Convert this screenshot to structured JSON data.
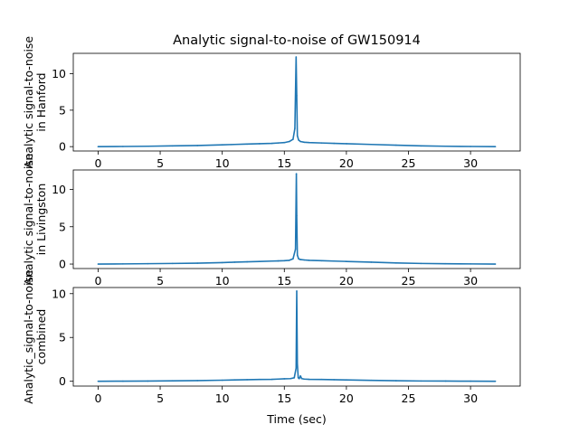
{
  "figure": {
    "title": "Analytic signal-to-noise of GW150914",
    "xlabel": "Time (sec)"
  },
  "chart_data": [
    {
      "type": "line",
      "ylabel_lines": [
        "Analytic signal-to-noise",
        "in Hanford"
      ],
      "xlim": [
        -2,
        34
      ],
      "ylim": [
        -0.6,
        12.8
      ],
      "xticks": [
        0,
        5,
        10,
        15,
        20,
        25,
        30
      ],
      "yticks": [
        0,
        5,
        10
      ],
      "grid": false,
      "color": "#1f77b4",
      "series": [
        {
          "x": [
            0,
            2,
            4,
            6,
            8,
            10,
            11,
            12,
            13,
            14,
            14.5,
            15,
            15.4,
            15.7,
            15.85,
            15.95,
            16.0,
            16.05,
            16.15,
            16.3,
            16.6,
            17,
            18,
            19,
            20,
            22,
            24,
            26,
            28,
            30,
            32
          ],
          "y": [
            0.0,
            0.02,
            0.05,
            0.1,
            0.15,
            0.25,
            0.3,
            0.35,
            0.4,
            0.45,
            0.5,
            0.55,
            0.7,
            1.0,
            2.5,
            12.3,
            7.0,
            1.5,
            0.9,
            0.7,
            0.6,
            0.55,
            0.5,
            0.45,
            0.4,
            0.3,
            0.2,
            0.1,
            0.05,
            0.02,
            0.0
          ]
        }
      ]
    },
    {
      "type": "line",
      "ylabel_lines": [
        "Analytic signal-to-noise",
        "in Livingston"
      ],
      "xlim": [
        -2,
        34
      ],
      "ylim": [
        -0.6,
        12.6
      ],
      "xticks": [
        0,
        5,
        10,
        15,
        20,
        25,
        30
      ],
      "yticks": [
        0,
        5,
        10
      ],
      "grid": false,
      "color": "#1f77b4",
      "series": [
        {
          "x": [
            0,
            2,
            4,
            6,
            8,
            10,
            11,
            12,
            13,
            14,
            14.5,
            15,
            15.4,
            15.7,
            15.9,
            15.97,
            16.0,
            16.05,
            16.15,
            16.3,
            16.6,
            17,
            18,
            19,
            20,
            22,
            24,
            26,
            28,
            30,
            32
          ],
          "y": [
            0.0,
            0.02,
            0.05,
            0.08,
            0.12,
            0.2,
            0.25,
            0.3,
            0.35,
            0.4,
            0.42,
            0.45,
            0.5,
            0.7,
            2.0,
            12.1,
            6.5,
            1.2,
            0.7,
            0.6,
            0.55,
            0.5,
            0.45,
            0.4,
            0.35,
            0.25,
            0.15,
            0.08,
            0.04,
            0.02,
            0.0
          ]
        }
      ]
    },
    {
      "type": "line",
      "ylabel_lines": [
        "Analytic_signal-to-noise",
        "combined"
      ],
      "xlim": [
        -2,
        34
      ],
      "ylim": [
        -0.55,
        10.7
      ],
      "xticks": [
        0,
        5,
        10,
        15,
        20,
        25,
        30
      ],
      "yticks": [
        0,
        5,
        10
      ],
      "grid": false,
      "color": "#1f77b4",
      "series": [
        {
          "x": [
            0,
            2,
            4,
            6,
            8,
            10,
            11,
            12,
            13,
            14,
            14.5,
            15,
            15.5,
            15.8,
            15.95,
            16.0,
            16.05,
            16.12,
            16.2,
            16.3,
            16.4,
            16.6,
            17,
            18,
            19,
            20,
            22,
            24,
            26,
            28,
            30,
            32
          ],
          "y": [
            0.0,
            0.01,
            0.02,
            0.05,
            0.08,
            0.12,
            0.15,
            0.18,
            0.2,
            0.22,
            0.25,
            0.28,
            0.3,
            0.4,
            1.5,
            10.3,
            2.0,
            0.4,
            0.3,
            0.6,
            0.3,
            0.25,
            0.22,
            0.2,
            0.18,
            0.15,
            0.1,
            0.06,
            0.03,
            0.02,
            0.01,
            0.0
          ]
        }
      ]
    }
  ]
}
